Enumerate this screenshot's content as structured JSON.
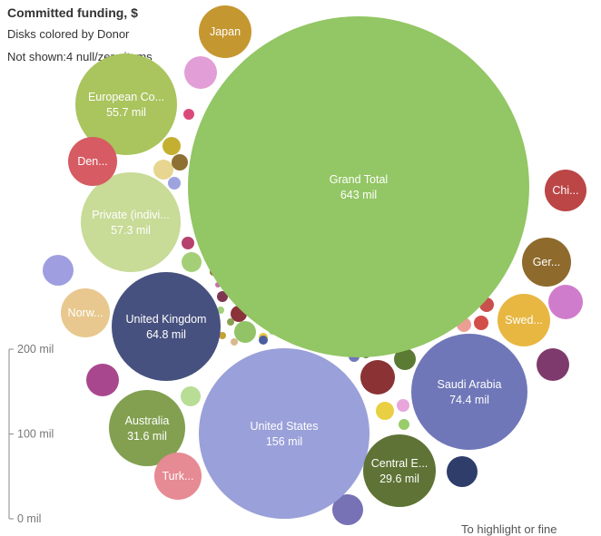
{
  "header": {
    "title": "Committed funding, $",
    "subtitle": "Disks colored by Donor",
    "note": "Not shown:4 null/zero items"
  },
  "footer": {
    "hint": "To highlight or fine"
  },
  "colors": {
    "grand_total": "#93c664",
    "united_states": "#9aa0d9",
    "united_kingdom": "#47517f",
    "saudi_arabia": "#6f77b8",
    "private": "#c8db97",
    "european": "#aac45e",
    "australia": "#82a050",
    "central": "#5e7335",
    "japan": "#c59730",
    "denmark": "#d65b63",
    "norway": "#e8c88e",
    "turkey": "#e68a93",
    "sweden": "#e8b742",
    "germany": "#8e6a2c",
    "china": "#bc4546"
  },
  "chart_data": {
    "type": "bubble",
    "title": "Committed funding, $",
    "subtitle": "Disks colored by Donor",
    "unit": "mil",
    "size_legend": {
      "ticks": [
        {
          "value": 200,
          "label": "200 mil"
        },
        {
          "value": 100,
          "label": "100 mil"
        },
        {
          "value": 0,
          "label": "0 mil"
        }
      ]
    },
    "bubbles": [
      {
        "name": "Grand Total",
        "label": "Grand Total",
        "value_label": "643 mil",
        "value": 643,
        "color": "#93c664"
      },
      {
        "name": "United States",
        "label": "United States",
        "value_label": "156 mil",
        "value": 156,
        "color": "#9aa0d9"
      },
      {
        "name": "Saudi Arabia",
        "label": "Saudi Arabia",
        "value_label": "74.4 mil",
        "value": 74.4,
        "color": "#6f77b8"
      },
      {
        "name": "United Kingdom",
        "label": "United Kingdom",
        "value_label": "64.8 mil",
        "value": 64.8,
        "color": "#47517f"
      },
      {
        "name": "Private (indivi...",
        "label": "Private (indivi...",
        "value_label": "57.3 mil",
        "value": 57.3,
        "color": "#c8db97"
      },
      {
        "name": "European Co...",
        "label": "European Co...",
        "value_label": "55.7 mil",
        "value": 55.7,
        "color": "#aac45e"
      },
      {
        "name": "Australia",
        "label": "Australia",
        "value_label": "31.6 mil",
        "value": 31.6,
        "color": "#82a050"
      },
      {
        "name": "Central E...",
        "label": "Central E...",
        "value_label": "29.6 mil",
        "value": 29.6,
        "color": "#5e7335"
      },
      {
        "name": "Japan",
        "label": "Japan",
        "value_label": "",
        "color": "#c59730"
      },
      {
        "name": "Den...",
        "label": "Den...",
        "value_label": "",
        "color": "#d65b63"
      },
      {
        "name": "Norw...",
        "label": "Norw...",
        "value_label": "",
        "color": "#e8c88e"
      },
      {
        "name": "Turk...",
        "label": "Turk...",
        "value_label": "",
        "color": "#e68a93"
      },
      {
        "name": "Swed...",
        "label": "Swed...",
        "value_label": "",
        "color": "#e8b742"
      },
      {
        "name": "Ger...",
        "label": "Ger...",
        "value_label": "",
        "color": "#8e6a2c"
      },
      {
        "name": "Chi...",
        "label": "Chi...",
        "value_label": "",
        "color": "#bc4546"
      }
    ],
    "small_bubbles": [
      {
        "color": "#e29ed6"
      },
      {
        "color": "#9e9ee0"
      },
      {
        "color": "#a9478e"
      },
      {
        "color": "#b8dd94"
      },
      {
        "color": "#7771b5"
      },
      {
        "color": "#2f3d6b"
      },
      {
        "color": "#d07ccc"
      },
      {
        "color": "#7e3a6c"
      },
      {
        "color": "#8a3234"
      },
      {
        "color": "#5b7a33"
      },
      {
        "color": "#e8d042"
      },
      {
        "color": "#e8a6dc"
      },
      {
        "color": "#98cd6a"
      },
      {
        "color": "#d24f49"
      },
      {
        "color": "#ec9e94"
      },
      {
        "color": "#c9504d"
      },
      {
        "color": "#d94a7a"
      },
      {
        "color": "#c4b030"
      },
      {
        "color": "#e8d58f"
      },
      {
        "color": "#8e7033"
      },
      {
        "color": "#9ea3e0"
      },
      {
        "color": "#b5426e"
      },
      {
        "color": "#a4cf76"
      },
      {
        "color": "#7f3650"
      },
      {
        "color": "#8a3339"
      },
      {
        "color": "#92c467"
      },
      {
        "color": "#a4d07c"
      },
      {
        "color": "#c4a137"
      },
      {
        "color": "#8aa050"
      },
      {
        "color": "#6f77b8"
      },
      {
        "color": "#e8c53e"
      },
      {
        "color": "#9bd67e"
      },
      {
        "color": "#4a5fa0"
      },
      {
        "color": "#d9b88e"
      },
      {
        "color": "#8a6a30"
      },
      {
        "color": "#d05662"
      },
      {
        "color": "#5e7335"
      },
      {
        "color": "#c96fa8"
      }
    ]
  }
}
